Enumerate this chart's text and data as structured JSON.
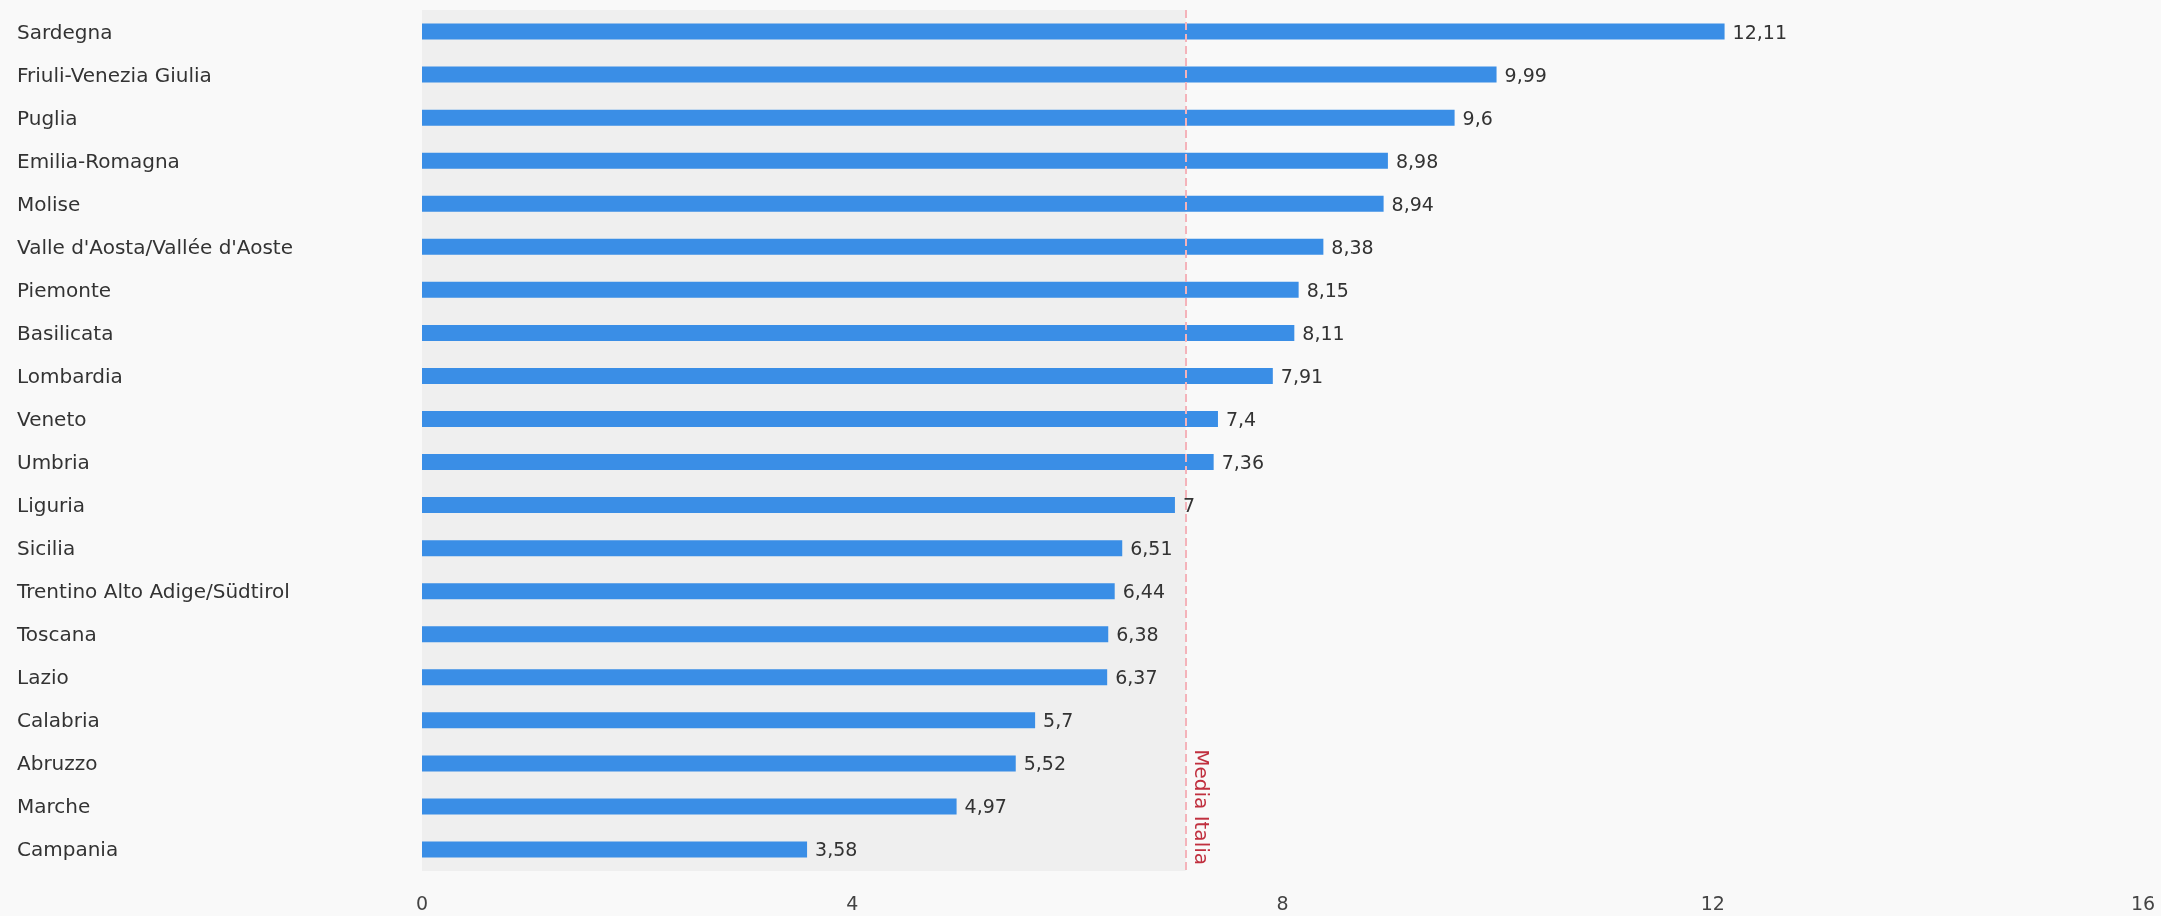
{
  "chart_data": {
    "type": "bar",
    "orientation": "horizontal",
    "categories": [
      "Sardegna",
      "Friuli-Venezia Giulia",
      "Puglia",
      "Emilia-Romagna",
      "Molise",
      "Valle d'Aosta/Vallée d'Aoste",
      "Piemonte",
      "Basilicata",
      "Lombardia",
      "Veneto",
      "Umbria",
      "Liguria",
      "Sicilia",
      "Trentino Alto Adige/Südtirol",
      "Toscana",
      "Lazio",
      "Calabria",
      "Abruzzo",
      "Marche",
      "Campania"
    ],
    "values": [
      12.11,
      9.99,
      9.6,
      8.98,
      8.94,
      8.38,
      8.15,
      8.11,
      7.91,
      7.4,
      7.36,
      7,
      6.51,
      6.44,
      6.38,
      6.37,
      5.7,
      5.52,
      4.97,
      3.58
    ],
    "value_labels": [
      "12,11",
      "9,99",
      "9,6",
      "8,98",
      "8,94",
      "8,38",
      "8,15",
      "8,11",
      "7,91",
      "7,4",
      "7,36",
      "7",
      "6,51",
      "6,44",
      "6,38",
      "6,37",
      "5,7",
      "5,52",
      "4,97",
      "3,58"
    ],
    "color": "#3a8ee6",
    "xlim": [
      0,
      16
    ],
    "xticks": [
      0,
      4,
      8,
      12,
      16
    ],
    "grid": false,
    "ref_lines": [
      {
        "axis": "x",
        "value": 7.1,
        "label": "Media Italia",
        "color": "#f4b3ba",
        "line_style": "dashed"
      }
    ],
    "bands": [
      {
        "axis": "x",
        "from": 0,
        "to": 7.1,
        "color": "#efefef"
      }
    ]
  }
}
